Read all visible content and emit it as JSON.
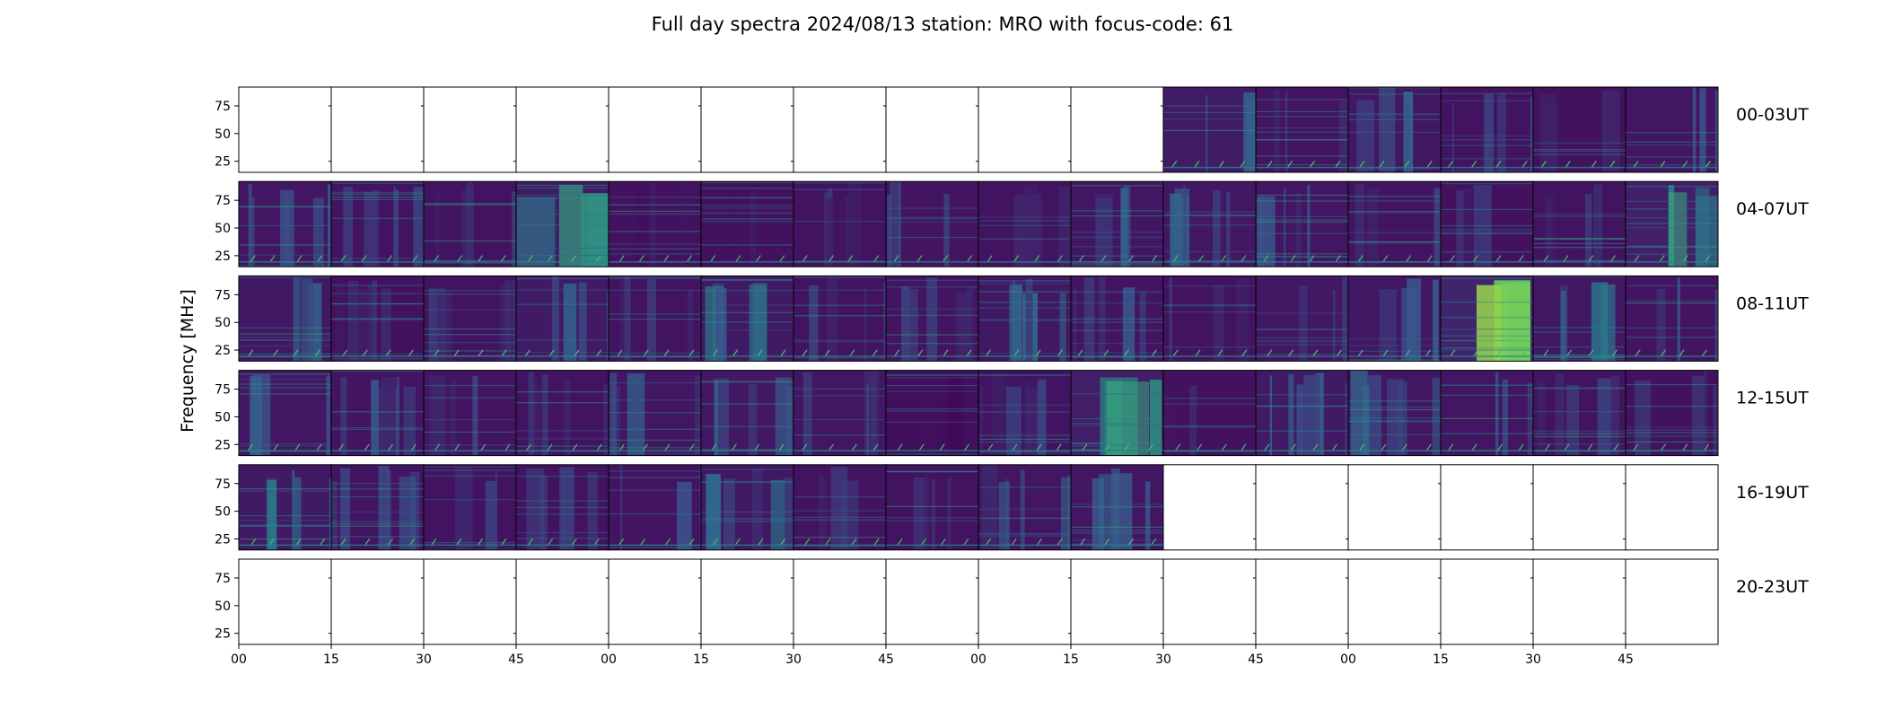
{
  "chart_data": {
    "type": "heatmap",
    "title": "Full day spectra 2024/08/13 station: MRO with focus-code: 61",
    "ylabel": "Frequency [MHz]",
    "ylim": [
      15,
      92
    ],
    "yticks": [
      25,
      50,
      75
    ],
    "xticks": [
      "00",
      "15",
      "30",
      "45",
      "00",
      "15",
      "30",
      "45",
      "00",
      "15",
      "30",
      "45",
      "00",
      "15",
      "30",
      "45"
    ],
    "panels_per_row": 16,
    "panel_minutes": 15,
    "row_labels": [
      "00-03UT",
      "04-07UT",
      "08-11UT",
      "12-15UT",
      "16-19UT",
      "20-23UT"
    ],
    "colormap": "viridis",
    "colors": {
      "background": "#440154",
      "low": "#472c7a",
      "mid": "#2a788e",
      "high": "#22a884",
      "max": "#fde725"
    },
    "panels": [
      [
        0,
        0,
        0,
        0,
        0,
        0,
        0,
        0,
        0,
        0,
        1,
        1,
        1,
        1,
        1,
        1
      ],
      [
        1,
        1,
        1,
        1,
        1,
        1,
        1,
        1,
        1,
        1,
        1,
        1,
        1,
        1,
        1,
        1
      ],
      [
        1,
        1,
        1,
        1,
        1,
        1,
        1,
        1,
        1,
        1,
        1,
        1,
        1,
        1,
        1,
        1
      ],
      [
        1,
        1,
        1,
        1,
        1,
        1,
        1,
        1,
        1,
        1,
        1,
        1,
        1,
        1,
        1,
        1
      ],
      [
        1,
        1,
        1,
        1,
        1,
        1,
        1,
        1,
        1,
        1,
        0,
        0,
        0,
        0,
        0,
        0
      ],
      [
        0,
        0,
        0,
        0,
        0,
        0,
        0,
        0,
        0,
        0,
        0,
        0,
        0,
        0,
        0,
        0
      ]
    ],
    "intensity": [
      [
        0,
        0,
        0,
        0,
        0,
        0,
        0,
        0,
        0,
        0,
        0.55,
        0.25,
        0.35,
        0.2,
        0.15,
        0.3
      ],
      [
        0.3,
        0.2,
        0.2,
        0.55,
        0.1,
        0.12,
        0.2,
        0.25,
        0.2,
        0.3,
        0.35,
        0.3,
        0.25,
        0.15,
        0.2,
        0.7
      ],
      [
        0.4,
        0.15,
        0.2,
        0.45,
        0.2,
        0.45,
        0.2,
        0.25,
        0.4,
        0.25,
        0.2,
        0.35,
        0.35,
        0.9,
        0.4,
        0.25
      ],
      [
        0.35,
        0.25,
        0.25,
        0.2,
        0.3,
        0.35,
        0.3,
        0.05,
        0.2,
        0.6,
        0.15,
        0.45,
        0.3,
        0.3,
        0.2,
        0.15
      ],
      [
        0.45,
        0.25,
        0.2,
        0.2,
        0.25,
        0.4,
        0.2,
        0.2,
        0.3,
        0.3,
        0,
        0,
        0,
        0,
        0,
        0
      ],
      [
        0,
        0,
        0,
        0,
        0,
        0,
        0,
        0,
        0,
        0,
        0,
        0,
        0,
        0,
        0,
        0
      ]
    ]
  }
}
